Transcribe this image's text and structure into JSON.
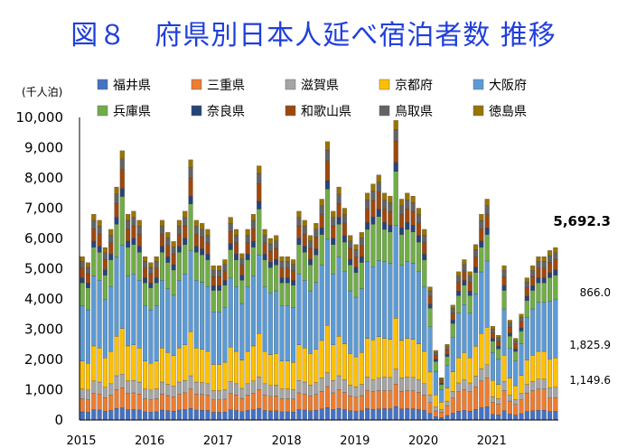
{
  "title": "図８　府県別日本人延べ宿泊者数 推移",
  "chart_data": {
    "type": "bar",
    "stacked": true,
    "title": "図８　府県別日本人延べ宿泊者数 推移",
    "ylabel": "(千人泊)",
    "ylim": [
      0,
      10000
    ],
    "yticks": [
      0,
      1000,
      2000,
      3000,
      4000,
      5000,
      6000,
      7000,
      8000,
      9000,
      10000
    ],
    "ytick_labels": [
      "0",
      "1,000",
      "2,000",
      "3,000",
      "4,000",
      "5,000",
      "6,000",
      "7,000",
      "8,000",
      "9,000",
      "10,000"
    ],
    "year_labels": [
      "2015",
      "2016",
      "2017",
      "2018",
      "2019",
      "2020",
      "2021"
    ],
    "x_start": "2015-01",
    "grid": false,
    "legend_placement": "top",
    "series": [
      {
        "name": "福井県",
        "color": "#4472c4"
      },
      {
        "name": "三重県",
        "color": "#ed7d31"
      },
      {
        "name": "滋賀県",
        "color": "#a5a5a5"
      },
      {
        "name": "京都府",
        "color": "#ffc000"
      },
      {
        "name": "大阪府",
        "color": "#5b9bd5"
      },
      {
        "name": "兵庫県",
        "color": "#70ad47"
      },
      {
        "name": "奈良県",
        "color": "#264478"
      },
      {
        "name": "和歌山県",
        "color": "#9e480e"
      },
      {
        "name": "鳥取県",
        "color": "#636363"
      },
      {
        "name": "徳島県",
        "color": "#997300"
      }
    ],
    "totals": [
      5400,
      5200,
      6800,
      6600,
      5700,
      6300,
      7700,
      8900,
      6800,
      6900,
      6600,
      5400,
      5200,
      5400,
      6600,
      6200,
      5900,
      6600,
      6900,
      8600,
      6600,
      6500,
      6300,
      5100,
      5100,
      5300,
      6700,
      6300,
      5500,
      6300,
      6800,
      8400,
      6300,
      6000,
      6100,
      5400,
      5400,
      5300,
      6900,
      6600,
      6100,
      6500,
      7300,
      9200,
      6900,
      7700,
      7000,
      6100,
      5800,
      6200,
      7500,
      7800,
      8100,
      7500,
      7400,
      9900,
      7300,
      7500,
      7400,
      7000,
      6300,
      4400,
      2300,
      1400,
      2500,
      3800,
      4900,
      5300,
      4900,
      5800,
      6800,
      7300,
      3100,
      2800,
      5100,
      3300,
      2700,
      3500,
      4700,
      5100,
      5400,
      5400,
      5600,
      5700
    ],
    "shares": {
      "normal": [
        0.05,
        0.08,
        0.06,
        0.17,
        0.34,
        0.14,
        0.03,
        0.06,
        0.04,
        0.03
      ],
      "peak": [
        0.045,
        0.075,
        0.05,
        0.17,
        0.31,
        0.18,
        0.03,
        0.07,
        0.04,
        0.03
      ],
      "covid": [
        0.06,
        0.13,
        0.06,
        0.17,
        0.3,
        0.12,
        0.03,
        0.06,
        0.04,
        0.03
      ]
    },
    "latest_annotations": [
      {
        "series": "合計",
        "value": "5,692.3"
      },
      {
        "series": "兵庫県",
        "value": "866.0"
      },
      {
        "series": "大阪府",
        "value": "1,825.9"
      },
      {
        "series": "京都府",
        "value": "1,149.6"
      }
    ]
  }
}
